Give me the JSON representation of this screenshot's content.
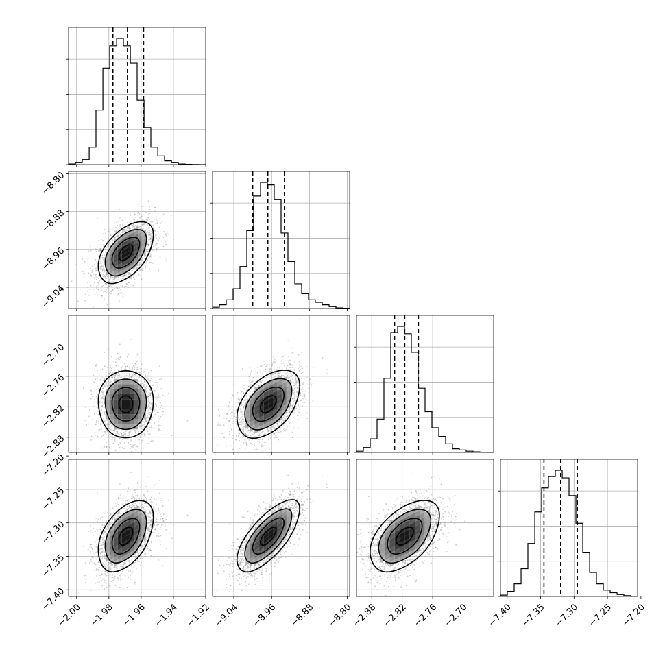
{
  "chart_data": {
    "type": "corner",
    "grid": true,
    "title": "",
    "parameters": [
      {
        "range": [
          -2.005,
          -1.92
        ],
        "ticks": [
          -2.0,
          -1.98,
          -1.96,
          -1.94,
          -1.92
        ],
        "tick_labels": [
          "−2.00",
          "−1.98",
          "−1.96",
          "−1.94",
          "−1.92"
        ],
        "quantiles": [
          -1.9775,
          -1.9685,
          -1.9585
        ],
        "histogram": {
          "bins": [
            -2.005,
            -2.0007,
            -1.9965,
            -1.9922,
            -1.988,
            -1.9837,
            -1.9795,
            -1.9752,
            -1.971,
            -1.9667,
            -1.9625,
            -1.9582,
            -1.954,
            -1.9497,
            -1.9455,
            -1.9412,
            -1.937,
            -1.9327,
            -1.9285,
            -1.9242,
            -1.92
          ],
          "counts": [
            0.5,
            1.5,
            4,
            14,
            44,
            78,
            96,
            102,
            96,
            82,
            52,
            30,
            14,
            7,
            3,
            1.5,
            0.5,
            0.2,
            0.1,
            0
          ]
        }
      },
      {
        "range": [
          -9.085,
          -8.795
        ],
        "ticks": [
          -9.04,
          -8.96,
          -8.88,
          -8.8
        ],
        "tick_labels": [
          "−9.04",
          "−8.96",
          "−8.88",
          "−8.80"
        ],
        "quantiles": [
          -9.0,
          -8.968,
          -8.933
        ],
        "histogram": {
          "bins": [
            -9.085,
            -9.0705,
            -9.056,
            -9.0415,
            -9.027,
            -9.0125,
            -8.998,
            -8.9835,
            -8.969,
            -8.9545,
            -8.94,
            -8.9255,
            -8.911,
            -8.8965,
            -8.882,
            -8.8675,
            -8.853,
            -8.8385,
            -8.824,
            -8.8095,
            -8.795
          ],
          "counts": [
            1,
            3,
            7,
            16,
            34,
            63,
            91,
            102,
            100,
            88,
            61,
            38,
            20,
            12,
            7,
            5,
            3,
            1.5,
            0.5,
            0.2
          ]
        }
      },
      {
        "range": [
          -2.91,
          -2.64
        ],
        "ticks": [
          -2.88,
          -2.82,
          -2.76,
          -2.7
        ],
        "tick_labels": [
          "−2.88",
          "−2.82",
          "−2.76",
          "−2.70"
        ],
        "quantiles": [
          -2.835,
          -2.815,
          -2.788
        ],
        "histogram": {
          "bins": [
            -2.91,
            -2.8965,
            -2.883,
            -2.8695,
            -2.856,
            -2.8425,
            -2.829,
            -2.8155,
            -2.802,
            -2.7885,
            -2.775,
            -2.7615,
            -2.748,
            -2.7345,
            -2.721,
            -2.7075,
            -2.694,
            -2.6805,
            -2.667,
            -2.6535,
            -2.64
          ],
          "counts": [
            1,
            4,
            11,
            27,
            60,
            97,
            102,
            96,
            81,
            52,
            33,
            20,
            13,
            7,
            3,
            2,
            1,
            0.5,
            0.2,
            0.1
          ]
        }
      },
      {
        "range": [
          -7.41,
          -7.205
        ],
        "ticks": [
          -7.4,
          -7.35,
          -7.3,
          -7.25,
          -7.2
        ],
        "tick_labels": [
          "−7.40",
          "−7.35",
          "−7.30",
          "−7.25",
          "−7.20"
        ],
        "quantiles": [
          -7.345,
          -7.32,
          -7.295
        ],
        "histogram": {
          "bins": [
            -7.41,
            -7.3997,
            -7.3895,
            -7.3792,
            -7.369,
            -7.3587,
            -7.3485,
            -7.3382,
            -7.328,
            -7.3177,
            -7.3075,
            -7.2972,
            -7.287,
            -7.2767,
            -7.2665,
            -7.2562,
            -7.246,
            -7.2357,
            -7.2255,
            -7.2152,
            -7.205
          ],
          "counts": [
            1,
            4,
            10,
            22,
            42,
            67,
            86,
            95,
            100,
            94,
            80,
            58,
            35,
            19,
            10,
            5,
            3,
            1.5,
            0.6,
            0.2
          ]
        }
      }
    ],
    "pairs": [
      {
        "row": 1,
        "col": 0,
        "mean": [
          -1.9695,
          -8.967
        ],
        "sd": [
          0.0085,
          0.033
        ],
        "rho": 0.5
      },
      {
        "row": 2,
        "col": 0,
        "mean": [
          -1.9695,
          -2.815
        ],
        "sd": [
          0.0085,
          0.034
        ],
        "rho": 0.0
      },
      {
        "row": 2,
        "col": 1,
        "mean": [
          -8.967,
          -2.815
        ],
        "sd": [
          0.033,
          0.034
        ],
        "rho": 0.45
      },
      {
        "row": 3,
        "col": 0,
        "mean": [
          -1.9695,
          -7.32
        ],
        "sd": [
          0.0085,
          0.027
        ],
        "rho": 0.45
      },
      {
        "row": 3,
        "col": 1,
        "mean": [
          -8.967,
          -7.32
        ],
        "sd": [
          0.033,
          0.027
        ],
        "rho": 0.7
      },
      {
        "row": 3,
        "col": 2,
        "mean": [
          -2.815,
          -7.32
        ],
        "sd": [
          0.034,
          0.027
        ],
        "rho": 0.5
      }
    ],
    "contour_levels_sigma": [
      0.5,
      1.0,
      1.5,
      2.0
    ]
  },
  "colors": {
    "line": "#000000",
    "grid": "#b0b0b0",
    "scatter": "#909090",
    "density_max": "#000000"
  }
}
